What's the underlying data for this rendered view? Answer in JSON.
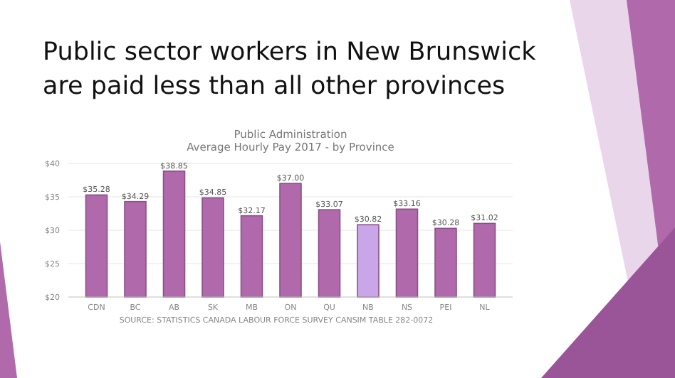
{
  "chart_data": {
    "type": "bar",
    "title": "Public sector workers in New Brunswick are paid less than all other provinces",
    "subtitle": "Public Administration\nAverage Hourly Pay 2017 - by Province",
    "categories": [
      "CDN",
      "BC",
      "AB",
      "SK",
      "MB",
      "ON",
      "QU",
      "NB",
      "NS",
      "PEI",
      "NL"
    ],
    "values": [
      35.28,
      34.29,
      38.85,
      34.85,
      32.17,
      37.0,
      33.07,
      30.82,
      33.16,
      30.28,
      31.02
    ],
    "value_labels": [
      "$35.28",
      "$34.29",
      "$38.85",
      "$34.85",
      "$32.17",
      "$37.00",
      "$33.07",
      "$30.82",
      "$33.16",
      "$30.28",
      "$31.02"
    ],
    "colors": [
      "#b06aac",
      "#b06aac",
      "#b06aac",
      "#b06aac",
      "#b06aac",
      "#b06aac",
      "#b06aac",
      "#c9a6e8",
      "#b06aac",
      "#b06aac",
      "#b06aac"
    ],
    "ylim": [
      20,
      40
    ],
    "yticks": [
      {
        "value": 20,
        "label": "$20"
      },
      {
        "value": 25,
        "label": "$25"
      },
      {
        "value": 30,
        "label": "$30"
      },
      {
        "value": 35,
        "label": "$35"
      },
      {
        "value": 40,
        "label": "$40"
      }
    ],
    "grid": true,
    "annotations": [
      "SOURCE: STATISTICS CANADA LABOUR FORCE SURVEY CANSIM TABLE 282-0072"
    ]
  }
}
